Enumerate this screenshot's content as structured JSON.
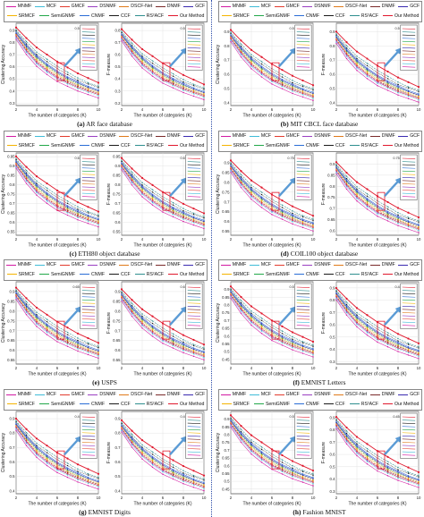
{
  "legend": {
    "row1": [
      "MNMF",
      "MCF",
      "GMCF",
      "DSNMF",
      "DSCF-Net",
      "DNMF",
      "GCF"
    ],
    "row2": [
      "SRMCF",
      "SemiGNMF",
      "CNMF",
      "CCF",
      "RS²ACF",
      "Our Method"
    ]
  },
  "method_colors": {
    "MNMF": "#d21aa3",
    "MCF": "#3fbcd8",
    "GMCF": "#e23b2e",
    "DSNMF": "#9b3fc2",
    "DSCF-Net": "#e07a1a",
    "DNMF": "#7a2a2a",
    "GCF": "#3a2ab0",
    "SRMCF": "#f4b400",
    "SemiGNMF": "#22a84a",
    "CNMF": "#2a6dd6",
    "CCF": "#1a1a1a",
    "RS²ACF": "#2f8f8f",
    "Our Method": "#e0182d"
  },
  "axis_text": {
    "xlabel": "The number of categories (K)",
    "ylabel_left": "Clustering Accuracy",
    "ylabel_right": "F-measure"
  },
  "panels": [
    {
      "id": "a",
      "letter": "(a)",
      "caption": "AR face database",
      "xticks": [
        2,
        4,
        6,
        8,
        10
      ],
      "left": {
        "yticks": [
          "0.9",
          "0.8",
          "0.7",
          "0.6",
          "0.5",
          "0.4",
          "0.3"
        ],
        "ylim": [
          0.28,
          0.96
        ]
      },
      "right": {
        "yticks": [
          "0.8",
          "0.7",
          "0.6",
          "0.5",
          "0.4",
          "0.3",
          "0.2"
        ],
        "ylim": [
          0.18,
          0.86
        ]
      },
      "inset_left": {
        "label": "0.5"
      },
      "inset_right": {
        "label": "0.5"
      }
    },
    {
      "id": "b",
      "letter": "(b)",
      "caption": "MIT CBCL face database",
      "xticks": [
        2,
        4,
        6,
        8,
        10
      ],
      "left": {
        "yticks": [
          "0.9",
          "0.8",
          "0.7",
          "0.6",
          "0.5",
          "0.4"
        ],
        "ylim": [
          0.38,
          0.96
        ]
      },
      "right": {
        "yticks": [
          "0.9",
          "0.8",
          "0.7",
          "0.6",
          "0.5",
          "0.4"
        ],
        "ylim": [
          0.38,
          0.96
        ]
      },
      "inset_left": {
        "label": "0.5"
      },
      "inset_right": {
        "label": "0.5"
      }
    },
    {
      "id": "c",
      "letter": "(c)",
      "caption": "ETH80 object database",
      "xticks": [
        2,
        4,
        6,
        8,
        10
      ],
      "left": {
        "yticks": [
          "0.95",
          "0.9",
          "0.85",
          "0.8",
          "0.75",
          "0.7",
          "0.65",
          "0.6",
          "0.55"
        ],
        "ylim": [
          0.53,
          0.97
        ]
      },
      "right": {
        "yticks": [
          "0.95",
          "0.9",
          "0.85",
          "0.8",
          "0.75",
          "0.7",
          "0.65",
          "0.6",
          "0.55"
        ],
        "ylim": [
          0.53,
          0.97
        ]
      },
      "inset_left": {
        "label": "0.6"
      },
      "inset_right": {
        "label": "0.6"
      }
    },
    {
      "id": "d",
      "letter": "(d)",
      "caption": "COIL100 object database",
      "xticks": [
        2,
        4,
        6,
        8,
        10
      ],
      "left": {
        "yticks": [
          "0.9",
          "0.85",
          "0.8",
          "0.75",
          "0.7",
          "0.65",
          "0.6",
          "0.55"
        ],
        "ylim": [
          0.53,
          0.95
        ]
      },
      "right": {
        "yticks": [
          "0.9",
          "0.85",
          "0.8",
          "0.75",
          "0.7",
          "0.65",
          "0.6"
        ],
        "ylim": [
          0.58,
          0.95
        ]
      },
      "inset_left": {
        "label": "0.75"
      },
      "inset_right": {
        "label": "0.75"
      }
    },
    {
      "id": "e",
      "letter": "(e)",
      "caption": "USPS",
      "xticks": [
        2,
        4,
        6,
        8,
        10
      ],
      "left": {
        "yticks": [
          "0.9",
          "0.85",
          "0.8",
          "0.75",
          "0.7",
          "0.65",
          "0.6",
          "0.55"
        ],
        "ylim": [
          0.53,
          0.95
        ]
      },
      "right": {
        "yticks": [
          "0.9",
          "0.85",
          "0.8",
          "0.75",
          "0.7",
          "0.65",
          "0.6",
          "0.55"
        ],
        "ylim": [
          0.53,
          0.95
        ]
      },
      "inset_left": {
        "label": "0.65"
      },
      "inset_right": {
        "label": "0.6"
      }
    },
    {
      "id": "f",
      "letter": "(f)",
      "caption": "EMNIST Letters",
      "xticks": [
        2,
        4,
        6,
        8,
        10
      ],
      "left": {
        "yticks": [
          "0.9",
          "0.85",
          "0.8",
          "0.75",
          "0.7",
          "0.65",
          "0.6",
          "0.55",
          "0.5",
          "0.45"
        ],
        "ylim": [
          0.42,
          0.95
        ]
      },
      "right": {
        "yticks": [
          "0.9",
          "0.8",
          "0.7",
          "0.6",
          "0.5",
          "0.4",
          "0.3"
        ],
        "ylim": [
          0.28,
          0.95
        ]
      },
      "inset_left": {
        "label": "0.5"
      },
      "inset_right": {
        "label": "0.4"
      }
    },
    {
      "id": "g",
      "letter": "(g)",
      "caption": "EMNIST Digits",
      "xticks": [
        2,
        4,
        6,
        8,
        10
      ],
      "left": {
        "yticks": [
          "0.9",
          "0.8",
          "0.7",
          "0.6",
          "0.5",
          "0.4"
        ],
        "ylim": [
          0.38,
          0.95
        ]
      },
      "right": {
        "yticks": [
          "0.9",
          "0.8",
          "0.7",
          "0.6",
          "0.5",
          "0.4"
        ],
        "ylim": [
          0.38,
          0.95
        ]
      },
      "inset_left": {
        "label": "0.4"
      },
      "inset_right": {
        "label": "0.4"
      }
    },
    {
      "id": "h",
      "letter": "(h)",
      "caption": "Fashion MNIST",
      "xticks": [
        2,
        4,
        6,
        8,
        10
      ],
      "left": {
        "yticks": [
          "0.9",
          "0.85",
          "0.8",
          "0.75",
          "0.7",
          "0.65",
          "0.6",
          "0.55",
          "0.5",
          "0.45"
        ],
        "ylim": [
          0.42,
          0.95
        ]
      },
      "right": {
        "yticks": [
          "0.9",
          "0.8",
          "0.7",
          "0.6",
          "0.5",
          "0.4",
          "0.3"
        ],
        "ylim": [
          0.28,
          0.95
        ]
      },
      "inset_left": {
        "label": "0.5"
      },
      "inset_right": {
        "label": "0.45"
      }
    }
  ],
  "chart_data": {
    "type": "line",
    "x": [
      2,
      3,
      4,
      5,
      6,
      7,
      8,
      9,
      10
    ],
    "xlabel": "The number of categories (K)",
    "ylabel": "Clustering Accuracy",
    "grid": true,
    "note_series_shape": "Our Method (red, star markers) is the top curve in every subplot; all methods decrease as K grows.",
    "series": [
      {
        "name": "Our Method",
        "values": [
          0.95,
          0.86,
          0.78,
          0.72,
          0.66,
          0.61,
          0.56,
          0.52,
          0.48
        ]
      },
      {
        "name": "RS²ACF",
        "values": [
          0.93,
          0.83,
          0.74,
          0.68,
          0.62,
          0.57,
          0.52,
          0.48,
          0.45
        ]
      },
      {
        "name": "CCF",
        "values": [
          0.92,
          0.81,
          0.72,
          0.66,
          0.6,
          0.55,
          0.5,
          0.47,
          0.44
        ]
      },
      {
        "name": "CNMF",
        "values": [
          0.91,
          0.8,
          0.71,
          0.64,
          0.58,
          0.53,
          0.49,
          0.45,
          0.42
        ]
      },
      {
        "name": "SemiGNMF",
        "values": [
          0.9,
          0.78,
          0.69,
          0.62,
          0.56,
          0.51,
          0.47,
          0.44,
          0.41
        ]
      },
      {
        "name": "SRMCF",
        "values": [
          0.89,
          0.77,
          0.68,
          0.61,
          0.55,
          0.5,
          0.46,
          0.43,
          0.4
        ]
      },
      {
        "name": "GCF",
        "values": [
          0.9,
          0.79,
          0.7,
          0.63,
          0.57,
          0.52,
          0.48,
          0.44,
          0.41
        ]
      },
      {
        "name": "DNMF",
        "values": [
          0.88,
          0.76,
          0.66,
          0.59,
          0.53,
          0.49,
          0.45,
          0.42,
          0.39
        ]
      },
      {
        "name": "DSCF-Net",
        "values": [
          0.89,
          0.77,
          0.67,
          0.6,
          0.54,
          0.5,
          0.46,
          0.42,
          0.39
        ]
      },
      {
        "name": "DSNMF",
        "values": [
          0.87,
          0.75,
          0.65,
          0.58,
          0.52,
          0.48,
          0.44,
          0.41,
          0.38
        ]
      },
      {
        "name": "GMCF",
        "values": [
          0.88,
          0.76,
          0.66,
          0.59,
          0.53,
          0.48,
          0.44,
          0.41,
          0.38
        ]
      },
      {
        "name": "MCF",
        "values": [
          0.86,
          0.74,
          0.64,
          0.57,
          0.51,
          0.47,
          0.43,
          0.4,
          0.37
        ]
      },
      {
        "name": "MNMF",
        "values": [
          0.85,
          0.72,
          0.62,
          0.55,
          0.49,
          0.45,
          0.41,
          0.38,
          0.35
        ]
      }
    ]
  }
}
